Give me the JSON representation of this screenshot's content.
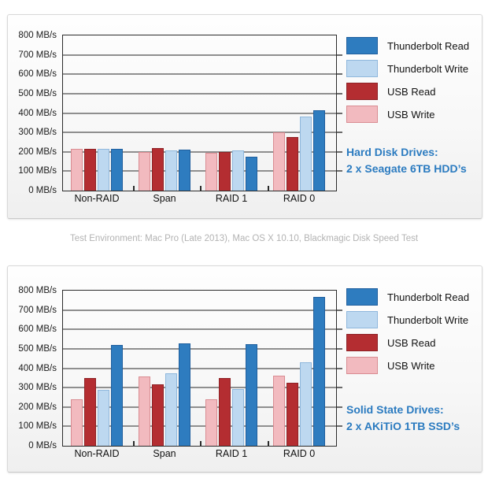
{
  "page": {
    "caption": "Test Environment: Mac Pro (Late 2013), Mac OS X 10.10, Blackmagic Disk Speed Test"
  },
  "colors": {
    "thunderbolt_read": "#2e7cbf",
    "thunderbolt_read_border": "#205f9e",
    "thunderbolt_write": "#bdd8f0",
    "thunderbolt_write_border": "#8fb7dc",
    "usb_read": "#b42d31",
    "usb_read_border": "#8e2226",
    "usb_write": "#f2babf",
    "usb_write_border": "#d98c92",
    "annotation_blue": "#2b7bc0",
    "gridline": "#8f8f8f",
    "axis": "#2b2b2b"
  },
  "chart_data": [
    {
      "type": "bar",
      "name": "hard-disk-drives",
      "categories": [
        "Non-RAID",
        "Span",
        "RAID 1",
        "RAID 0"
      ],
      "series": [
        {
          "key": "thunderbolt_read",
          "name": "Thunderbolt Read",
          "values": [
            215,
            213,
            176,
            416
          ]
        },
        {
          "key": "thunderbolt_write",
          "name": "Thunderbolt Write",
          "values": [
            214,
            206,
            207,
            383
          ]
        },
        {
          "key": "usb_read",
          "name": "USB Read",
          "values": [
            215,
            219,
            201,
            278
          ]
        },
        {
          "key": "usb_write",
          "name": "USB Write",
          "values": [
            217,
            200,
            196,
            299
          ]
        }
      ],
      "bar_order": [
        "usb_write",
        "usb_read",
        "thunderbolt_write",
        "thunderbolt_read"
      ],
      "ylim": [
        0,
        800
      ],
      "y_tick_step": 100,
      "y_unit": "MB/s",
      "y_tick_labels": [
        "800 MB/s",
        "700 MB/s",
        "600 MB/s",
        "500 MB/s",
        "400 MB/s",
        "300 MB/s",
        "200 MB/s",
        "100 MB/s",
        "0 MB/s"
      ],
      "grid": true,
      "legend_position": "right",
      "annotation": [
        "Hard Disk Drives:",
        "2 x Seagate 6TB HDD’s"
      ]
    },
    {
      "type": "bar",
      "name": "solid-state-drives",
      "categories": [
        "Non-RAID",
        "Span",
        "RAID 1",
        "RAID 0"
      ],
      "series": [
        {
          "key": "thunderbolt_read",
          "name": "Thunderbolt Read",
          "values": [
            518,
            526,
            524,
            766
          ]
        },
        {
          "key": "thunderbolt_write",
          "name": "Thunderbolt Write",
          "values": [
            289,
            372,
            293,
            430
          ]
        },
        {
          "key": "usb_read",
          "name": "USB Read",
          "values": [
            348,
            317,
            350,
            324
          ]
        },
        {
          "key": "usb_write",
          "name": "USB Write",
          "values": [
            238,
            356,
            238,
            361
          ]
        }
      ],
      "bar_order": [
        "usb_write",
        "usb_read",
        "thunderbolt_write",
        "thunderbolt_read"
      ],
      "ylim": [
        0,
        800
      ],
      "y_tick_step": 100,
      "y_unit": "MB/s",
      "y_tick_labels": [
        "800 MB/s",
        "700 MB/s",
        "600 MB/s",
        "500 MB/s",
        "400 MB/s",
        "300 MB/s",
        "200 MB/s",
        "100 MB/s",
        "0 MB/s"
      ],
      "grid": true,
      "legend_position": "right",
      "annotation": [
        "Solid State Drives:",
        "2 x AKiTiO 1TB SSD’s"
      ]
    }
  ]
}
